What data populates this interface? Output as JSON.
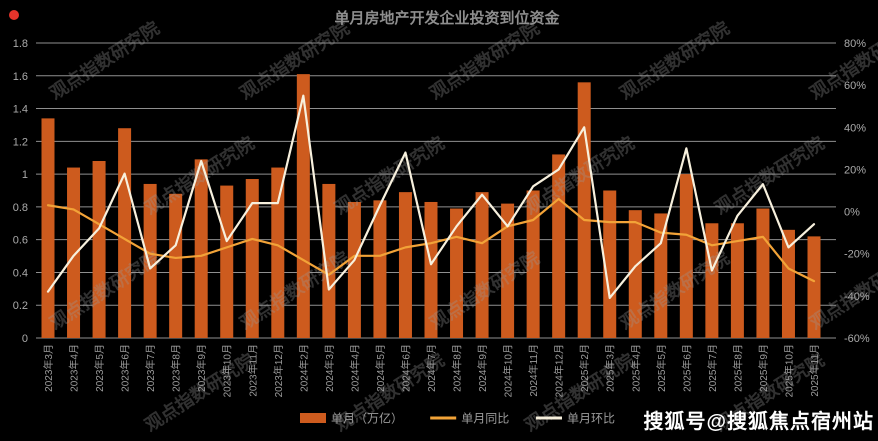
{
  "chart_data": {
    "type": "bar",
    "title": "单月房地产开发企业投资到位资金",
    "categories": [
      "2023年3月",
      "2023年4月",
      "2023年5月",
      "2023年6月",
      "2023年7月",
      "2023年8月",
      "2023年9月",
      "2023年10月",
      "2023年11月",
      "2023年12月",
      "2024年2月",
      "2024年3月",
      "2024年4月",
      "2024年5月",
      "2024年6月",
      "2024年7月",
      "2024年8月",
      "2024年9月",
      "2024年10月",
      "2024年11月",
      "2024年12月",
      "2025年2月",
      "2025年3月",
      "2025年4月",
      "2025年5月",
      "2025年6月",
      "2025年7月",
      "2025年8月",
      "2025年9月",
      "2025年10月",
      "2025年11月"
    ],
    "series": [
      {
        "name": "单月（万亿）",
        "type": "bar",
        "axis": "left",
        "color": "#cd5b1e",
        "values": [
          1.34,
          1.04,
          1.08,
          1.28,
          0.94,
          0.88,
          1.09,
          0.93,
          0.97,
          1.04,
          1.61,
          0.94,
          0.83,
          0.84,
          0.89,
          0.83,
          0.79,
          0.89,
          0.82,
          0.9,
          1.12,
          1.56,
          0.9,
          0.78,
          0.76,
          1.0,
          0.7,
          0.7,
          0.79,
          0.66,
          0.62
        ]
      },
      {
        "name": "单月同比",
        "type": "line",
        "axis": "right",
        "color": "#f2a338",
        "values": [
          3,
          1,
          -6,
          -13,
          -20,
          -22,
          -21,
          -17,
          -13,
          -16,
          -23,
          -30,
          -21,
          -21,
          -17,
          -15,
          -12,
          -15,
          -7,
          -4,
          6,
          -4,
          -5,
          -5,
          -10,
          -11,
          -16,
          -14,
          -12,
          -27,
          -33
        ]
      },
      {
        "name": "单月环比",
        "type": "line",
        "axis": "right",
        "color": "#f7f0dd",
        "values": [
          -38,
          -21,
          -8,
          18,
          -27,
          -16,
          24,
          -14,
          4,
          4,
          55,
          -37,
          -23,
          3,
          28,
          -25,
          -7,
          8,
          -7,
          12,
          20,
          40,
          -41,
          -26,
          -15,
          30,
          -28,
          -2,
          13,
          -17,
          -6
        ]
      }
    ],
    "left_axis": {
      "min": 0,
      "max": 1.8,
      "tick_values": [
        1.8,
        1.6,
        1.4,
        1.2,
        1.0,
        0.8,
        0.6,
        0.4,
        0.2,
        0
      ],
      "tick_labels": [
        "1.8",
        "1.6",
        "1.4",
        "1.2",
        "1",
        "0.8",
        "0.6",
        "0.4",
        "0.2",
        "0"
      ]
    },
    "right_axis": {
      "min": -60,
      "max": 80,
      "tick_values": [
        80,
        60,
        40,
        20,
        0,
        -20,
        -40,
        -60
      ],
      "tick_labels": [
        "80%",
        "60%",
        "40%",
        "20%",
        "0%",
        "-20%",
        "-40%",
        "-60%"
      ]
    },
    "grid": true,
    "legend_position": "bottom-center"
  },
  "watermark": {
    "text": "观点指数研究院"
  },
  "footer": {
    "text": "搜狐号@搜狐焦点宿州站"
  },
  "colors": {
    "background": "#000000",
    "bar": "#cd5b1e",
    "yoy_line": "#f2a338",
    "mom_line": "#f7f0dd",
    "gridline": "#8f8f8f",
    "axis_text": "#ababab",
    "title_text": "#8e8e8e",
    "recording_dot": "#e5342b",
    "footer_text": "#ffffff"
  }
}
